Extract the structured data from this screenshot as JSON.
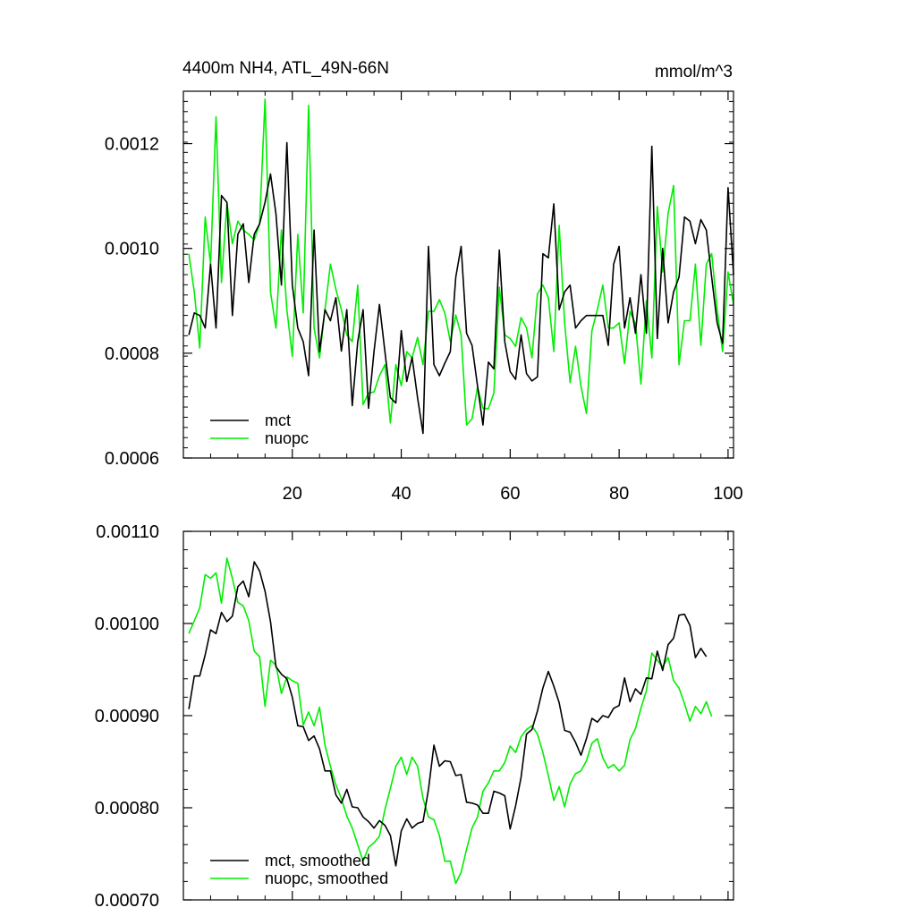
{
  "chart_data": [
    {
      "type": "line",
      "title": "4400m NH4, ATL_49N-66N",
      "units": "mmol/m^3",
      "xlim": [
        0,
        101
      ],
      "ylim": [
        0.0006,
        0.0013
      ],
      "x_ticks": [
        "20",
        "40",
        "60",
        "80",
        "100"
      ],
      "y_ticks": [
        "0.0006",
        "0.0008",
        "0.0010",
        "0.0012"
      ],
      "legend": {
        "position": "bottom-left",
        "entries": [
          "mct",
          "nuopc"
        ]
      },
      "series": [
        {
          "name": "mct",
          "color": "#000000",
          "values": [
            0.000835,
            0.000877,
            0.000872,
            0.000848,
            0.00097,
            0.000848,
            0.001101,
            0.001088,
            0.000872,
            0.001027,
            0.001047,
            0.000935,
            0.001027,
            0.001047,
            0.001088,
            0.001142,
            0.001066,
            0.00093,
            0.001202,
            0.00093,
            0.000848,
            0.000822,
            0.000757,
            0.001035,
            0.000803,
            0.000883,
            0.000862,
            0.000906,
            0.000804,
            0.000883,
            0.0007,
            0.000822,
            0.000883,
            0.000695,
            0.000803,
            0.000893,
            0.000803,
            0.000715,
            0.000705,
            0.000843,
            0.000746,
            0.000792,
            0.000715,
            0.000647,
            0.001004,
            0.000778,
            0.000757,
            0.000781,
            0.000803,
            0.000945,
            0.001004,
            0.000838,
            0.000815,
            0.000738,
            0.000663,
            0.000783,
            0.00077,
            0.000997,
            0.000822,
            0.000765,
            0.00075,
            0.000835,
            0.000761,
            0.000747,
            0.000755,
            0.00099,
            0.000982,
            0.001085,
            0.000883,
            0.000917,
            0.00093,
            0.000848,
            0.000862,
            0.000872,
            0.000872,
            0.000872,
            0.000872,
            0.000815,
            0.00097,
            0.001004,
            0.000848,
            0.000906,
            0.000838,
            0.00095,
            0.000838,
            0.001195,
            0.000828,
            0.001,
            0.000858,
            0.000917,
            0.000945,
            0.00106,
            0.001052,
            0.001009,
            0.001055,
            0.001035,
            0.000945,
            0.000858,
            0.000819,
            0.001116,
            0.00095
          ]
        },
        {
          "name": "nuopc",
          "color": "#00ee00",
          "values": [
            0.00099,
            0.000917,
            0.00081,
            0.00106,
            0.00097,
            0.001251,
            0.000935,
            0.001087,
            0.001009,
            0.001052,
            0.001035,
            0.001027,
            0.001016,
            0.001047,
            0.001285,
            0.000917,
            0.000848,
            0.001035,
            0.000883,
            0.000794,
            0.001027,
            0.000877,
            0.001273,
            0.000848,
            0.000791,
            0.000883,
            0.00097,
            0.000922,
            0.000883,
            0.000835,
            0.000822,
            0.00093,
            0.000702,
            0.000724,
            0.000726,
            0.000757,
            0.000778,
            0.000667,
            0.000778,
            0.000738,
            0.000803,
            0.000791,
            0.00083,
            0.000778,
            0.00088,
            0.00088,
            0.000902,
            0.000877,
            0.000822,
            0.000873,
            0.000835,
            0.000663,
            0.000675,
            0.000735,
            0.000695,
            0.000694,
            0.000724,
            0.000926,
            0.000835,
            0.000828,
            0.000813,
            0.000868,
            0.000848,
            0.000791,
            0.000913,
            0.00093,
            0.000906,
            0.000803,
            0.001044,
            0.000858,
            0.000744,
            0.000813,
            0.000737,
            0.000685,
            0.000843,
            0.000883,
            0.00093,
            0.000848,
            0.000848,
            0.000858,
            0.00078,
            0.00088,
            0.000856,
            0.000741,
            0.0009,
            0.000791,
            0.00108,
            0.000955,
            0.001067,
            0.00112,
            0.000778,
            0.000862,
            0.000862,
            0.00097,
            0.000815,
            0.00097,
            0.00099,
            0.000883,
            0.000803,
            0.000955,
            0.000893
          ]
        }
      ]
    },
    {
      "type": "line",
      "title": "",
      "xlim": [
        0,
        101
      ],
      "ylim": [
        0.0007,
        0.0011
      ],
      "y_ticks": [
        "0.00070",
        "0.00080",
        "0.00090",
        "0.00100",
        "0.00110"
      ],
      "legend": {
        "position": "bottom-left",
        "entries": [
          "mct, smoothed",
          "nuopc, smoothed"
        ]
      },
      "series": [
        {
          "name": "mct, smoothed",
          "color": "#000000",
          "values": [
            0.000907,
            0.000943,
            0.000943,
            0.000966,
            0.000993,
            0.000989,
            0.001012,
            0.001002,
            0.001008,
            0.00104,
            0.001046,
            0.001029,
            0.001067,
            0.001057,
            0.001035,
            0.001002,
            0.000953,
            0.000945,
            0.00094,
            0.00092,
            0.000889,
            0.000888,
            0.000873,
            0.000878,
            0.000864,
            0.00084,
            0.00084,
            0.000814,
            0.000805,
            0.00082,
            0.000801,
            0.0008,
            0.00079,
            0.000785,
            0.000778,
            0.000786,
            0.000781,
            0.00077,
            0.000737,
            0.000775,
            0.000788,
            0.000778,
            0.000783,
            0.000785,
            0.00082,
            0.000868,
            0.000845,
            0.000851,
            0.00085,
            0.000835,
            0.000836,
            0.000806,
            0.000805,
            0.000803,
            0.000794,
            0.000794,
            0.000818,
            0.000816,
            0.000813,
            0.000777,
            0.000802,
            0.000833,
            0.00088,
            0.000885,
            0.000905,
            0.00093,
            0.000948,
            0.000932,
            0.000914,
            0.000884,
            0.000882,
            0.000871,
            0.000857,
            0.000875,
            0.000897,
            0.000893,
            0.0009,
            0.000898,
            0.000908,
            0.000911,
            0.000941,
            0.000915,
            0.000929,
            0.000923,
            0.000941,
            0.00094,
            0.00097,
            0.000949,
            0.000977,
            0.000984,
            0.001009,
            0.00101,
            0.000998,
            0.000963,
            0.000973,
            0.000964
          ]
        },
        {
          "name": "nuopc, smoothed",
          "color": "#00ee00",
          "values": [
            0.000989,
            0.001003,
            0.001017,
            0.001053,
            0.001049,
            0.001055,
            0.001022,
            0.001071,
            0.001049,
            0.001023,
            0.001019,
            0.001003,
            0.00097,
            0.000964,
            0.00091,
            0.00096,
            0.000955,
            0.000924,
            0.000942,
            0.000938,
            0.000935,
            0.00089,
            0.000904,
            0.000889,
            0.000909,
            0.000868,
            0.000845,
            0.000825,
            0.00081,
            0.000791,
            0.000778,
            0.00076,
            0.000742,
            0.000757,
            0.000762,
            0.000769,
            0.000798,
            0.000821,
            0.000845,
            0.000855,
            0.000836,
            0.000855,
            0.000845,
            0.00081,
            0.00079,
            0.000787,
            0.00077,
            0.000742,
            0.000742,
            0.000718,
            0.00073,
            0.000755,
            0.000778,
            0.00079,
            0.000818,
            0.000827,
            0.00084,
            0.00084,
            0.000849,
            0.000867,
            0.00086,
            0.000877,
            0.000885,
            0.000889,
            0.00088,
            0.00086,
            0.000835,
            0.000808,
            0.000823,
            0.000801,
            0.000826,
            0.000837,
            0.00084,
            0.000851,
            0.00087,
            0.000875,
            0.000854,
            0.000843,
            0.000847,
            0.00084,
            0.000846,
            0.000874,
            0.000886,
            0.000908,
            0.000927,
            0.000968,
            0.00096,
            0.000953,
            0.000963,
            0.000938,
            0.00093,
            0.000913,
            0.000894,
            0.00091,
            0.000902,
            0.000915,
            0.000899
          ]
        }
      ]
    }
  ]
}
